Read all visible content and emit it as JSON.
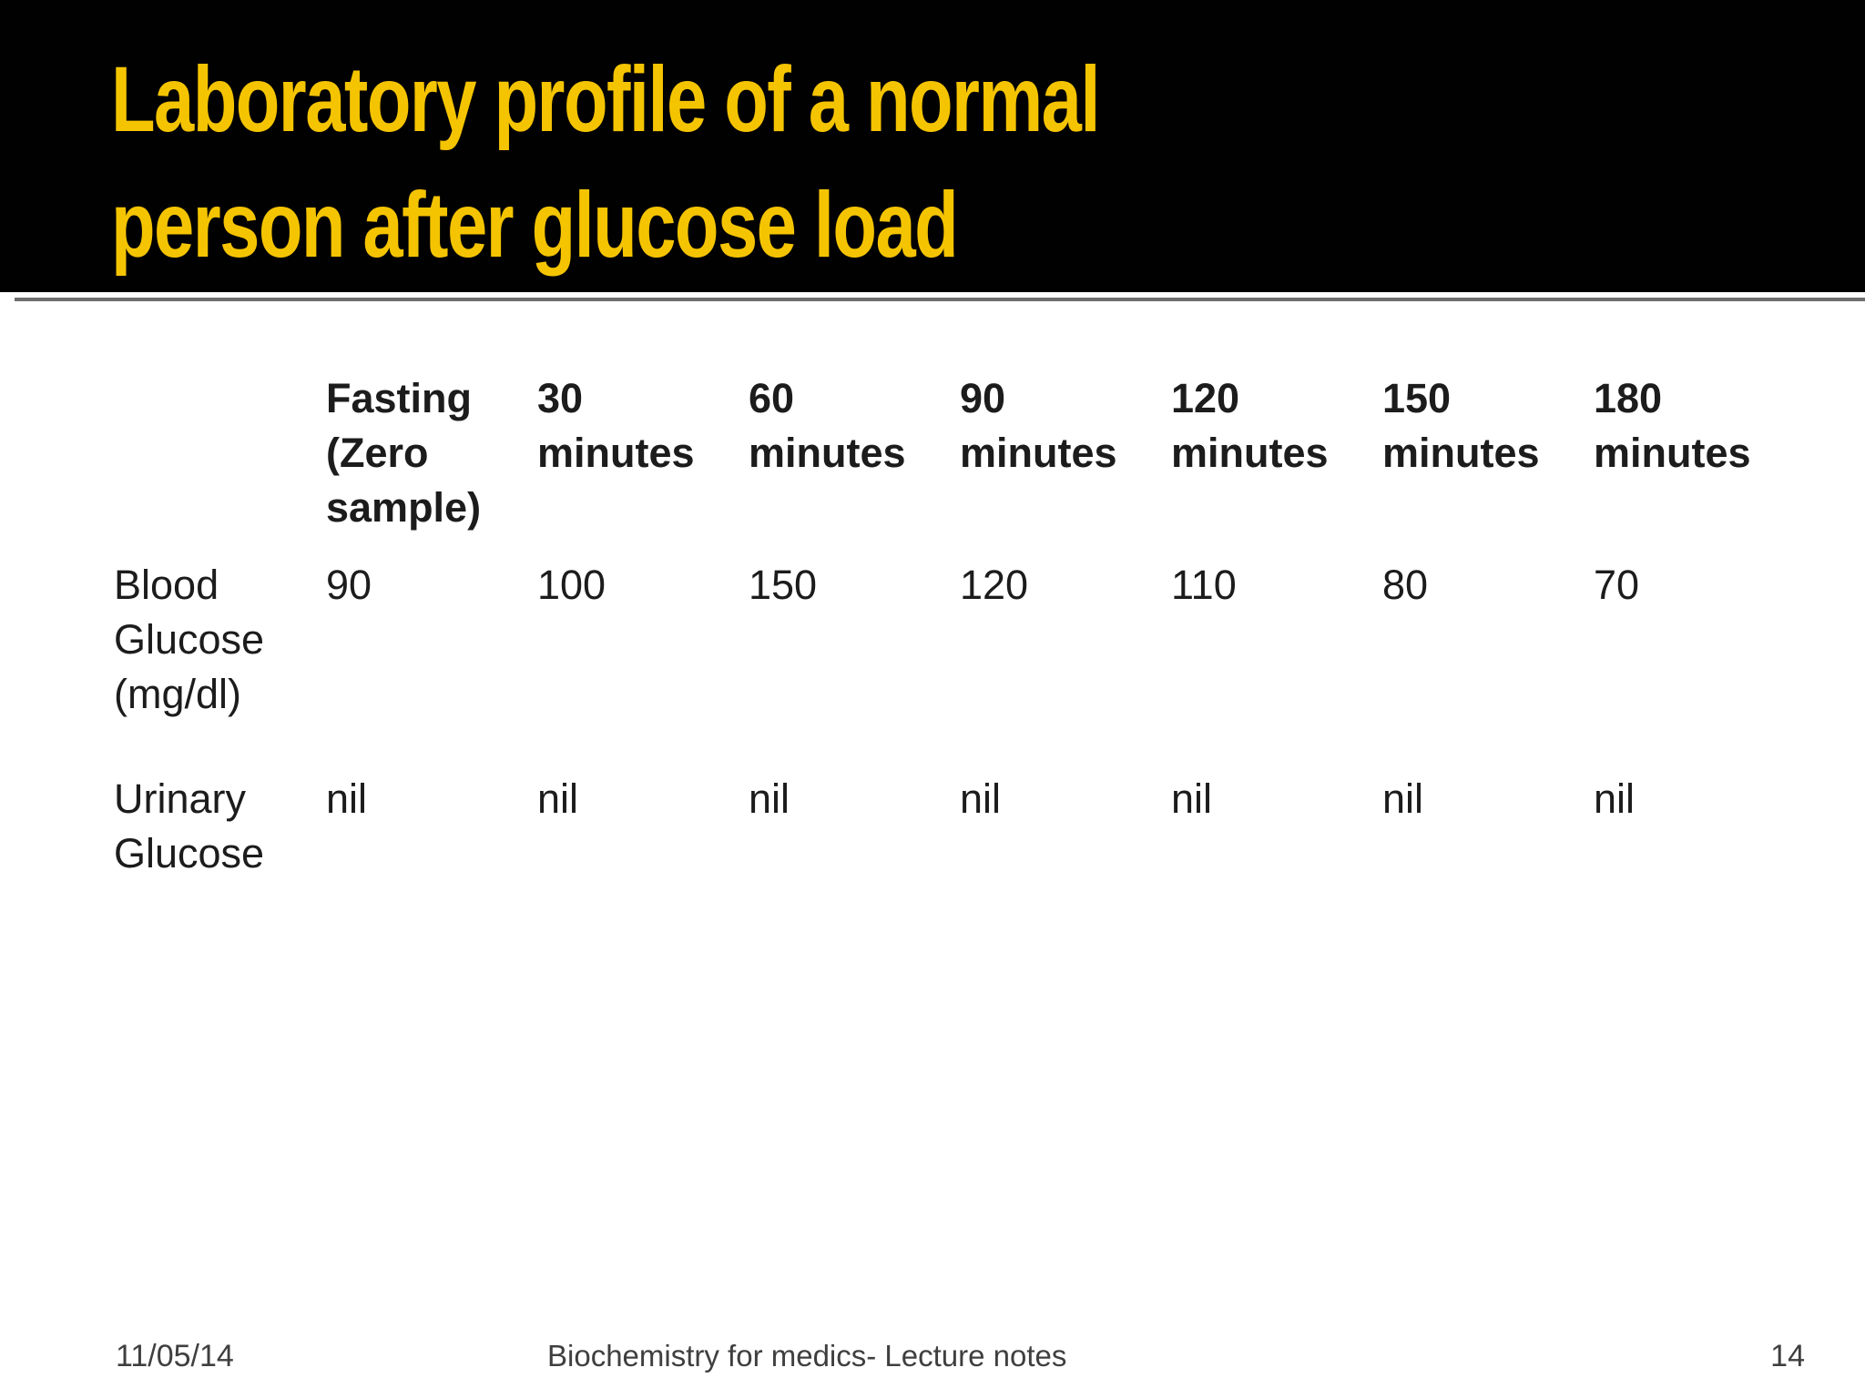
{
  "slide": {
    "title_lines": [
      "Laboratory profile of a normal",
      "person after glucose load"
    ]
  },
  "table": {
    "columns": [
      "Fasting (Zero sample)",
      "30 minutes",
      "60 minutes",
      "90 minutes",
      "120 minutes",
      "150 minutes",
      "180 minutes"
    ],
    "rows": [
      {
        "label": "Blood Glucose (mg/dl)",
        "values": [
          "90",
          "100",
          "150",
          "120",
          "110",
          "80",
          "70"
        ]
      },
      {
        "label": "Urinary Glucose",
        "values": [
          "nil",
          "nil",
          "nil",
          "nil",
          "nil",
          "nil",
          "nil"
        ]
      }
    ]
  },
  "footer": {
    "date": "11/05/14",
    "center_text": "Biochemistry for medics- Lecture notes",
    "page_number": "14"
  },
  "colors": {
    "title_yellow": "#F5C400",
    "header_background": "#010101",
    "divider_gray": "#6E6E6E",
    "body_text": "#1C1C1C",
    "footer_text": "#3F3F3F"
  }
}
